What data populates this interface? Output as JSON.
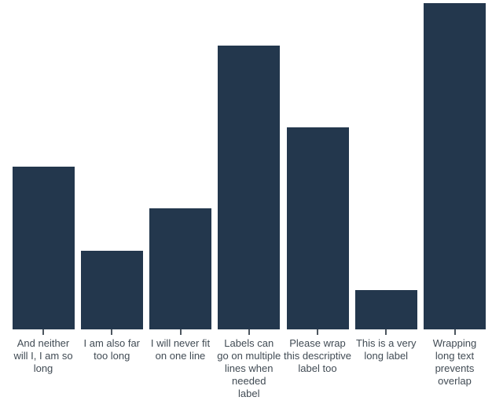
{
  "chart_data": {
    "type": "bar",
    "title": "",
    "xlabel": "",
    "ylabel": "",
    "ylim": [
      0,
      100
    ],
    "grid": false,
    "legend": false,
    "y_axis_visible": false,
    "x_axis_line_visible": false,
    "bar_color": "#23374d",
    "tick_color": "#4d565f",
    "label_color": "#414b54",
    "categories": [
      "And neither will I, I am so long",
      "I am also far too long",
      "I will never fit on one line",
      "Labels can go on multiple lines when needed label",
      "Please wrap this descriptive label too",
      "This is a very long label",
      "Wrapping long text prevents overlap"
    ],
    "values": [
      50,
      24,
      37,
      87,
      62,
      12,
      100
    ],
    "label_lines": [
      [
        "And neither",
        "will I, I am so",
        "long"
      ],
      [
        "I am also far",
        "too long"
      ],
      [
        "I will never fit",
        "on one line"
      ],
      [
        "Labels can",
        "go on multiple",
        "lines when",
        "needed",
        "label"
      ],
      [
        "Please wrap",
        "this descriptive",
        "label too"
      ],
      [
        "This is a very",
        "long label"
      ],
      [
        "Wrapping",
        "long text",
        "prevents",
        "overlap"
      ]
    ]
  }
}
